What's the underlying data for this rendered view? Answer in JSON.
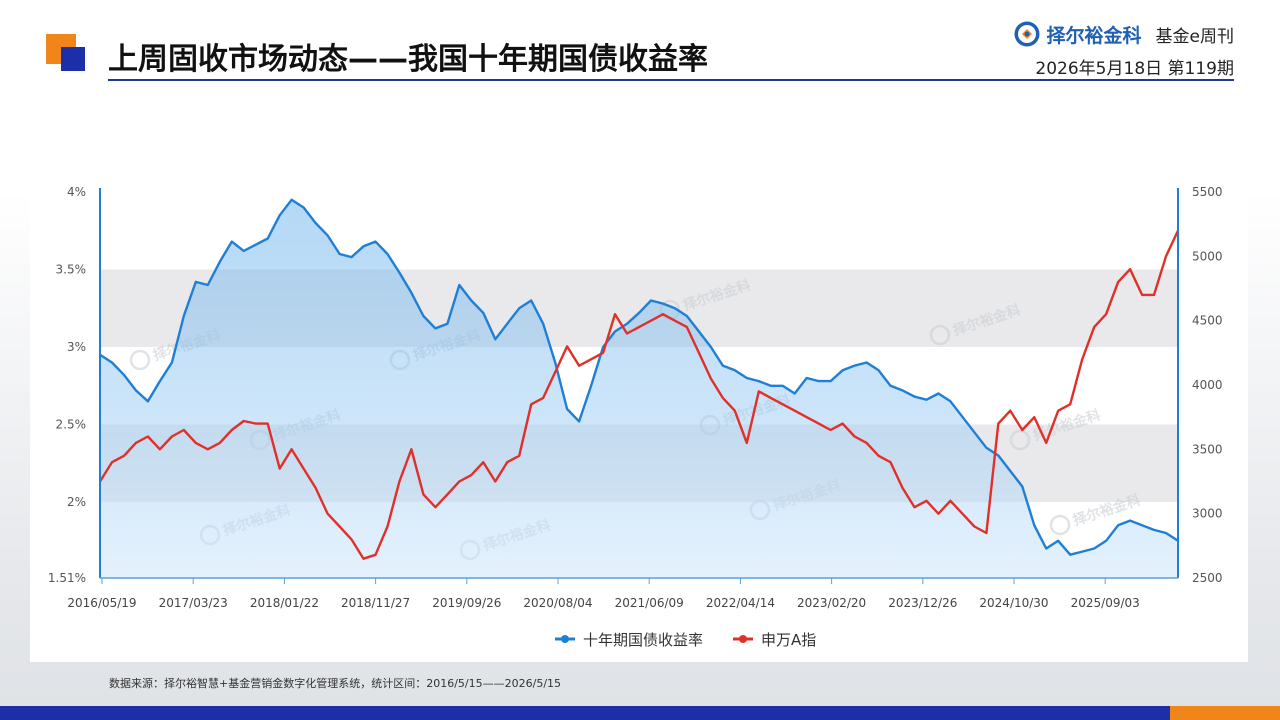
{
  "header": {
    "title": "上周固收市场动态——我国十年期国债收益率",
    "brand_name": "择尔裕金科",
    "brand_sub": "基金e周刊",
    "issue": "2026年5月18日  第119期"
  },
  "footer": {
    "source": "数据来源：择尔裕智慧+基金营销金数字化管理系统，统计区间：2016/5/15——2026/5/15"
  },
  "watermark": "择尔裕金科",
  "colors": {
    "yield": "#1f7fd6",
    "index": "#e0302a",
    "band": "#e9e9eb",
    "accent_orange": "#f08519",
    "accent_blue": "#1c2fa8"
  },
  "chart_data": {
    "type": "line",
    "x_ticks": [
      "2016/05/19",
      "2017/03/23",
      "2018/01/22",
      "2018/11/27",
      "2019/09/26",
      "2020/08/04",
      "2021/06/09",
      "2022/04/14",
      "2023/02/20",
      "2023/12/26",
      "2024/10/30",
      "2025/09/03"
    ],
    "y_left": {
      "ticks": [
        "4%",
        "3.5%",
        "3%",
        "2.5%",
        "2%",
        "1.51%"
      ],
      "range": [
        1.51,
        4.0
      ]
    },
    "y_right": {
      "ticks": [
        "5500",
        "5000",
        "4500",
        "4000",
        "3500",
        "3000",
        "2500"
      ],
      "range": [
        2500,
        5500
      ]
    },
    "series": [
      {
        "name": "十年期国债收益率",
        "axis": "left",
        "area": true,
        "values": [
          2.95,
          2.9,
          2.82,
          2.72,
          2.65,
          2.78,
          2.9,
          3.2,
          3.42,
          3.4,
          3.55,
          3.68,
          3.62,
          3.66,
          3.7,
          3.85,
          3.95,
          3.9,
          3.8,
          3.72,
          3.6,
          3.58,
          3.65,
          3.68,
          3.6,
          3.48,
          3.35,
          3.2,
          3.12,
          3.15,
          3.4,
          3.3,
          3.22,
          3.05,
          3.15,
          3.25,
          3.3,
          3.15,
          2.9,
          2.6,
          2.52,
          2.75,
          3.0,
          3.1,
          3.15,
          3.22,
          3.3,
          3.28,
          3.25,
          3.2,
          3.1,
          3.0,
          2.88,
          2.85,
          2.8,
          2.78,
          2.75,
          2.75,
          2.7,
          2.8,
          2.78,
          2.78,
          2.85,
          2.88,
          2.9,
          2.85,
          2.75,
          2.72,
          2.68,
          2.66,
          2.7,
          2.65,
          2.55,
          2.45,
          2.35,
          2.3,
          2.2,
          2.1,
          1.85,
          1.7,
          1.75,
          1.66,
          1.68,
          1.7,
          1.75,
          1.85,
          1.88,
          1.85,
          1.82,
          1.8,
          1.75
        ]
      },
      {
        "name": "申万A指",
        "axis": "right",
        "area": false,
        "values": [
          3250,
          3400,
          3450,
          3550,
          3600,
          3500,
          3600,
          3650,
          3550,
          3500,
          3550,
          3650,
          3720,
          3700,
          3700,
          3350,
          3500,
          3350,
          3200,
          3000,
          2900,
          2800,
          2650,
          2680,
          2900,
          3250,
          3500,
          3150,
          3050,
          3150,
          3250,
          3300,
          3400,
          3250,
          3400,
          3450,
          3850,
          3900,
          4100,
          4300,
          4150,
          4200,
          4250,
          4550,
          4400,
          4450,
          4500,
          4550,
          4500,
          4450,
          4250,
          4050,
          3900,
          3800,
          3550,
          3950,
          3900,
          3850,
          3800,
          3750,
          3700,
          3650,
          3700,
          3600,
          3550,
          3450,
          3400,
          3200,
          3050,
          3100,
          3000,
          3100,
          3000,
          2900,
          2850,
          3700,
          3800,
          3650,
          3750,
          3550,
          3800,
          3850,
          4200,
          4450,
          4550,
          4800,
          4900,
          4700,
          4700,
          5000,
          5200
        ]
      }
    ],
    "legend": "bottom",
    "grid": false
  }
}
